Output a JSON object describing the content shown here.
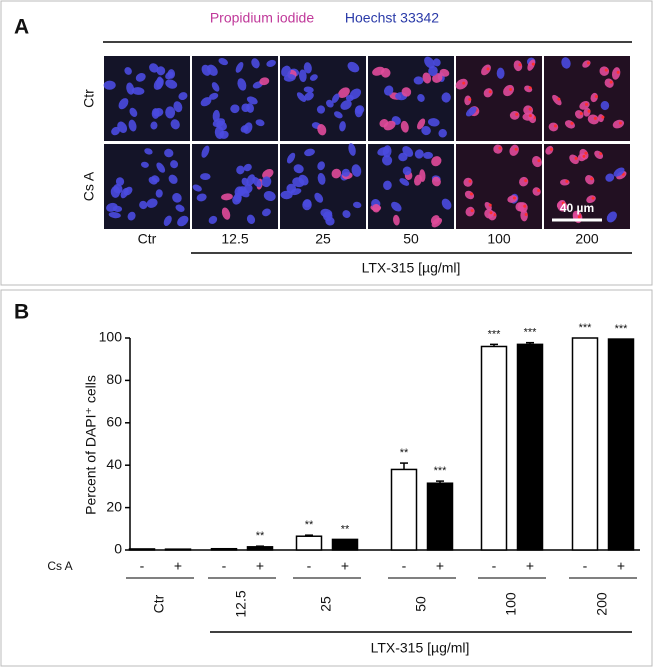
{
  "panel_a": {
    "label": "A",
    "legend": [
      {
        "text": "Propidium iodide",
        "color": "#c0399a"
      },
      {
        "text": "Hoechst 33342",
        "color": "#2a3aa8"
      }
    ],
    "rows": [
      "Ctr",
      "Cs A"
    ],
    "columns": [
      "Ctr",
      "12.5",
      "25",
      "50",
      "100",
      "200"
    ],
    "scale_bar": "40 µm",
    "axis_label": "LTX-315 [µg/ml]"
  },
  "chart_data": {
    "type": "bar",
    "label": "B",
    "ylabel": "Percent of DAPI⁺ cells",
    "xlabel": "LTX-315 [µg/ml]",
    "row_label": "Cs A",
    "categories": [
      "Ctr",
      "12.5",
      "25",
      "50",
      "100",
      "200"
    ],
    "series": [
      {
        "name": "-",
        "color": "#ffffff",
        "values": [
          0.5,
          0.6,
          6.5,
          38,
          96,
          100
        ],
        "errors": [
          null,
          null,
          0.5,
          3,
          1,
          null
        ],
        "significance": [
          null,
          null,
          "**",
          "**",
          "***",
          "***"
        ]
      },
      {
        "name": "+",
        "color": "#000000",
        "values": [
          0.4,
          1.5,
          5,
          31.5,
          97,
          99.5
        ],
        "errors": [
          null,
          0.3,
          null,
          1,
          0.8,
          null
        ],
        "significance": [
          null,
          "**",
          "**",
          "***",
          "***",
          "***"
        ]
      }
    ],
    "ylim": [
      0,
      100
    ],
    "yticks": [
      0,
      20,
      40,
      60,
      80,
      100
    ]
  }
}
